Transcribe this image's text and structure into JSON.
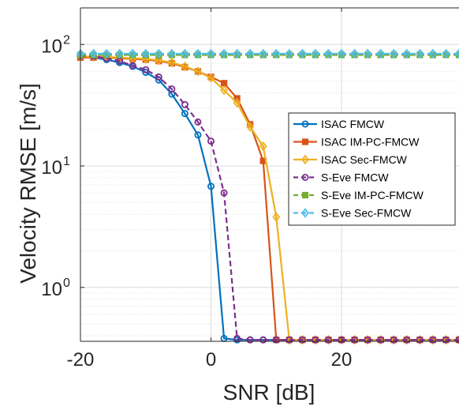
{
  "chart_data": {
    "type": "line",
    "title": "",
    "xlabel": "SNR [dB]",
    "ylabel": "Velocity RMSE [m/s]",
    "xlim": [
      -20,
      38
    ],
    "ylim": [
      0.36,
      200
    ],
    "yscale": "log",
    "grid": true,
    "xticks": [
      -20,
      0,
      20
    ],
    "xtick_labels": [
      "-20",
      "0",
      "20"
    ],
    "yticks": [
      1,
      10,
      100
    ],
    "ytick_bases": [
      "10",
      "10",
      "10"
    ],
    "ytick_exponents": [
      "0",
      "1",
      "2"
    ],
    "legend_position": "center-right",
    "x": [
      -20,
      -18,
      -16,
      -14,
      -12,
      -10,
      -8,
      -6,
      -4,
      -2,
      0,
      2,
      4,
      6,
      8,
      10,
      12,
      14,
      16,
      18,
      20,
      22,
      24,
      26,
      28,
      30,
      32,
      34,
      36,
      38
    ],
    "series": [
      {
        "name": "ISAC FMCW",
        "color": "#0072BD",
        "dash": "solid",
        "marker": "circle",
        "values": [
          80,
          78,
          75,
          71,
          66,
          59,
          51,
          39,
          27,
          18,
          6.8,
          0.38,
          0.37,
          0.37,
          0.37,
          0.37,
          0.37,
          0.37,
          0.37,
          0.37,
          0.37,
          0.37,
          0.37,
          0.37,
          0.37,
          0.37,
          0.37,
          0.37,
          0.37,
          0.37
        ]
      },
      {
        "name": "ISAC IM-PC-FMCW",
        "color": "#D95319",
        "dash": "solid",
        "marker": "square",
        "values": [
          78,
          78,
          78,
          77,
          76,
          75,
          73,
          70,
          65,
          60,
          54,
          48,
          36,
          22,
          11,
          0.37,
          0.37,
          0.37,
          0.37,
          0.37,
          0.37,
          0.37,
          0.37,
          0.37,
          0.37,
          0.37,
          0.37,
          0.37,
          0.37,
          0.37
        ]
      },
      {
        "name": "ISAC Sec-FMCW",
        "color": "#EDB120",
        "dash": "solid",
        "marker": "diamond",
        "values": [
          80,
          79,
          79,
          78,
          77,
          76,
          74,
          71,
          66,
          60,
          53,
          42,
          33,
          21,
          14.5,
          3.8,
          0.37,
          0.37,
          0.37,
          0.37,
          0.37,
          0.37,
          0.37,
          0.37,
          0.37,
          0.37,
          0.37,
          0.37,
          0.37,
          0.37
        ]
      },
      {
        "name": "S-Eve FMCW",
        "color": "#7E2F8E",
        "dash": "dashed",
        "marker": "circle",
        "values": [
          81,
          80,
          77,
          73,
          67,
          62,
          54,
          43,
          32,
          23,
          16,
          6,
          0.38,
          0.37,
          0.37,
          0.37,
          0.37,
          0.37,
          0.37,
          0.37,
          0.37,
          0.37,
          0.37,
          0.37,
          0.37,
          0.37,
          0.37,
          0.37,
          0.37,
          0.37
        ]
      },
      {
        "name": "S-Eve IM-PC-FMCW",
        "color": "#77AC30",
        "dash": "dashed",
        "marker": "square",
        "values": [
          82,
          82,
          82,
          82,
          82,
          82,
          82,
          82,
          82,
          82,
          82,
          82,
          82,
          82,
          82,
          82,
          82,
          82,
          82,
          82,
          82,
          82,
          82,
          82,
          82,
          82,
          82,
          82,
          82,
          82
        ]
      },
      {
        "name": "S-Eve Sec-FMCW",
        "color": "#4DBEEE",
        "dash": "dashed",
        "marker": "diamond",
        "values": [
          84,
          84,
          84,
          84,
          84,
          84,
          84,
          84,
          84,
          84,
          84,
          84,
          84,
          84,
          84,
          84,
          84,
          84,
          84,
          84,
          84,
          84,
          84,
          84,
          84,
          84,
          84,
          84,
          84,
          84
        ]
      }
    ]
  }
}
